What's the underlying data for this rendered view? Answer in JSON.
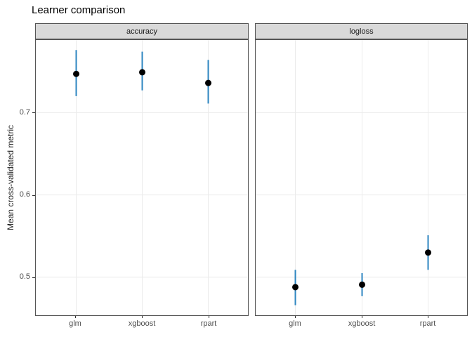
{
  "chart_data": {
    "type": "scatter",
    "mark": "point-with-error-bar",
    "title": "Learner comparison",
    "xlabel": "",
    "ylabel": "Mean cross-validated metric",
    "categories": [
      "glm",
      "xgboost",
      "rpart"
    ],
    "y_ticks": [
      0.5,
      0.6,
      0.7
    ],
    "y_tick_labels": [
      "0.5",
      "0.6",
      "0.7"
    ],
    "ylim": [
      0.453,
      0.789
    ],
    "grid": "major-only",
    "legend": "none",
    "facets": [
      {
        "label": "accuracy",
        "points": [
          {
            "x": "glm",
            "mean": 0.747,
            "lower": 0.72,
            "upper": 0.776
          },
          {
            "x": "xgboost",
            "mean": 0.749,
            "lower": 0.727,
            "upper": 0.774
          },
          {
            "x": "rpart",
            "mean": 0.736,
            "lower": 0.711,
            "upper": 0.764
          }
        ]
      },
      {
        "label": "logloss",
        "points": [
          {
            "x": "glm",
            "mean": 0.488,
            "lower": 0.466,
            "upper": 0.509
          },
          {
            "x": "xgboost",
            "mean": 0.491,
            "lower": 0.477,
            "upper": 0.505
          },
          {
            "x": "rpart",
            "mean": 0.53,
            "lower": 0.509,
            "upper": 0.551
          }
        ]
      }
    ],
    "colors": {
      "errorbar": "#2E86C1",
      "point": "#000000",
      "grid": "#EBEBEB",
      "panel_border": "#555555",
      "strip_bg": "#D9D9D9",
      "axis_text": "#4D4D4D",
      "title_text": "#000000"
    }
  }
}
